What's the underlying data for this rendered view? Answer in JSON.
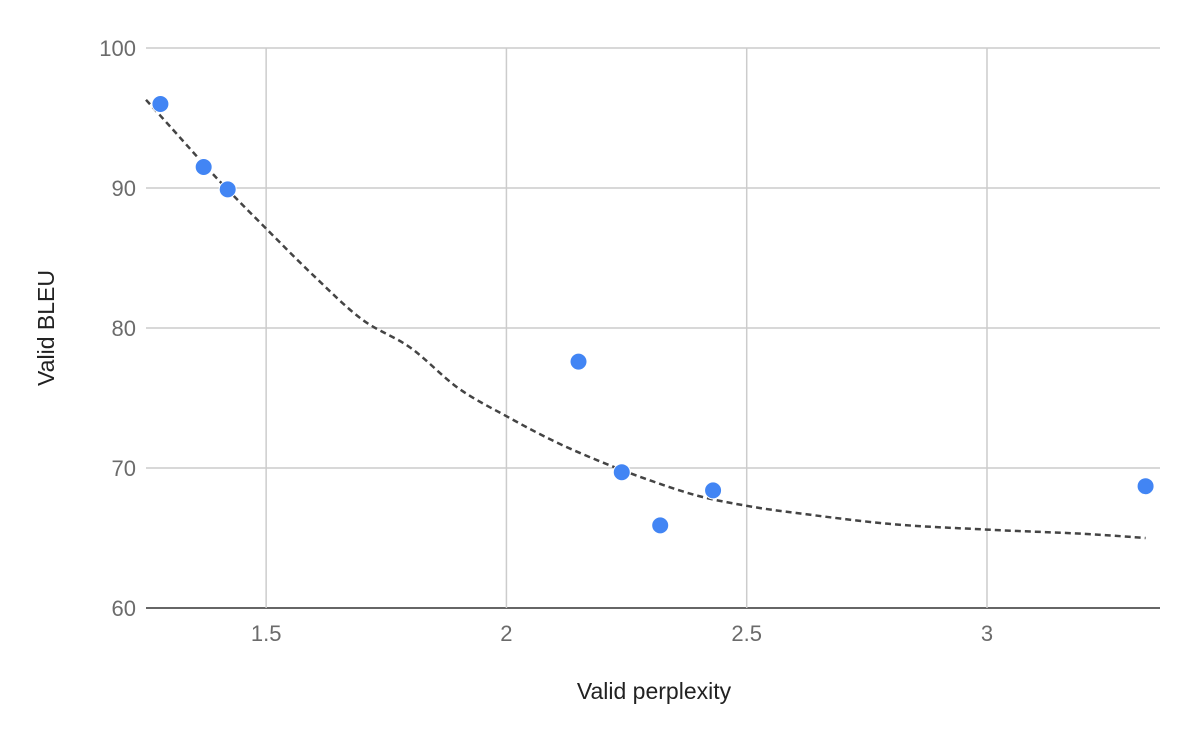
{
  "chart_data": {
    "type": "scatter",
    "title": "",
    "xlabel": "Valid perplexity",
    "ylabel": "Valid BLEU",
    "xlim": [
      1.25,
      3.36
    ],
    "ylim": [
      60,
      100
    ],
    "x_ticks": [
      1.5,
      2,
      2.5,
      3
    ],
    "x_tick_labels": [
      "1.5",
      "2",
      "2.5",
      "3"
    ],
    "y_ticks": [
      60,
      70,
      80,
      90,
      100
    ],
    "y_tick_labels": [
      "60",
      "70",
      "80",
      "90",
      "100"
    ],
    "grid": true,
    "legend": "none",
    "series": [
      {
        "points": [
          {
            "x": 1.28,
            "y": 96.0
          },
          {
            "x": 1.37,
            "y": 91.5
          },
          {
            "x": 1.42,
            "y": 89.9
          },
          {
            "x": 2.15,
            "y": 77.6
          },
          {
            "x": 2.24,
            "y": 69.7
          },
          {
            "x": 2.32,
            "y": 65.9
          },
          {
            "x": 2.43,
            "y": 68.4
          },
          {
            "x": 3.33,
            "y": 68.7
          }
        ],
        "color": "#4285f4"
      }
    ],
    "trendline": {
      "style": "dashed",
      "color": "#444444",
      "points": [
        {
          "x": 1.25,
          "y": 96.3
        },
        {
          "x": 1.3,
          "y": 94.4
        },
        {
          "x": 1.4,
          "y": 90.6
        },
        {
          "x": 1.5,
          "y": 87.1
        },
        {
          "x": 1.6,
          "y": 83.7
        },
        {
          "x": 1.7,
          "y": 80.6
        },
        {
          "x": 1.8,
          "y": 78.6
        },
        {
          "x": 1.9,
          "y": 75.7
        },
        {
          "x": 2.0,
          "y": 73.7
        },
        {
          "x": 2.1,
          "y": 71.9
        },
        {
          "x": 2.2,
          "y": 70.4
        },
        {
          "x": 2.3,
          "y": 69.1
        },
        {
          "x": 2.4,
          "y": 68.0
        },
        {
          "x": 2.5,
          "y": 67.3
        },
        {
          "x": 2.6,
          "y": 66.8
        },
        {
          "x": 2.8,
          "y": 66.0
        },
        {
          "x": 3.0,
          "y": 65.6
        },
        {
          "x": 3.2,
          "y": 65.3
        },
        {
          "x": 3.33,
          "y": 65.0
        }
      ]
    }
  }
}
